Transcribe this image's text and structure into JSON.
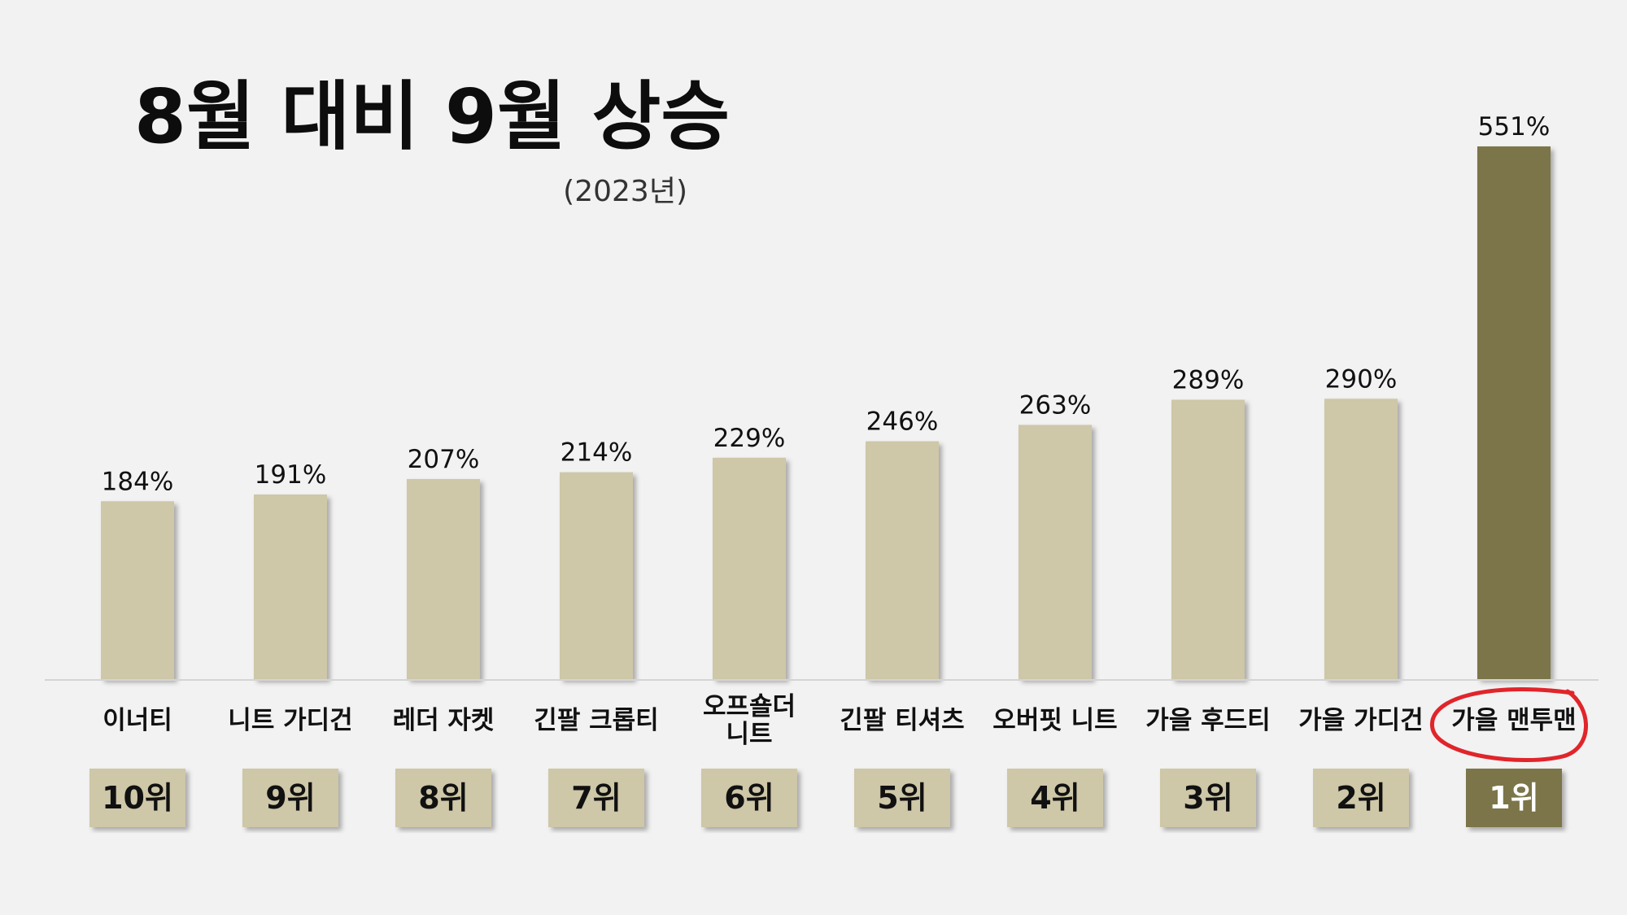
{
  "chart_data": {
    "type": "bar",
    "title": "8월 대비 9월 상승",
    "subtitle": "(2023년)",
    "categories": [
      "이너티",
      "니트 가디건",
      "레더 자켓",
      "긴팔 크롭티",
      "오프숄더 니트",
      "긴팔 티셔츠",
      "오버핏 니트",
      "가을 후드티",
      "가을 가디건",
      "가을 맨투맨"
    ],
    "category_lines": [
      [
        "이너티"
      ],
      [
        "니트 가디건"
      ],
      [
        "레더 자켓"
      ],
      [
        "긴팔 크롭티"
      ],
      [
        "오프숄더",
        "니트"
      ],
      [
        "긴팔 티셔츠"
      ],
      [
        "오버핏 니트"
      ],
      [
        "가을 후드티"
      ],
      [
        "가을 가디건"
      ],
      [
        "가을 맨투맨"
      ]
    ],
    "values": [
      184,
      191,
      207,
      214,
      229,
      246,
      263,
      289,
      290,
      551
    ],
    "value_labels": [
      "184%",
      "191%",
      "207%",
      "214%",
      "229%",
      "246%",
      "263%",
      "289%",
      "290%",
      "551%"
    ],
    "ranks": [
      "10위",
      "9위",
      "8위",
      "7위",
      "6위",
      "5위",
      "4위",
      "3위",
      "2위",
      "1위"
    ],
    "highlight_index": 9,
    "ylim": [
      0,
      551
    ],
    "xlabel": "",
    "ylabel": "",
    "grid": false,
    "legend": "none"
  },
  "colors": {
    "background": "#f2f2f2",
    "bar": "#cec7a8",
    "bar_highlight": "#7b7449",
    "rank_box": "#cec7a8",
    "rank_box_highlight": "#7b7449",
    "rank_text": "#111111",
    "rank_text_highlight": "#ffffff",
    "axis_line": "#d4d4d4",
    "annotation_circle": "#e0252b"
  }
}
